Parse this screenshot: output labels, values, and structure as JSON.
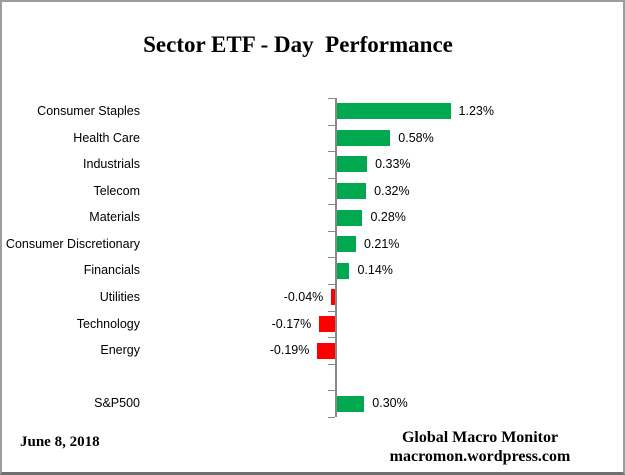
{
  "title": "Sector ETF - Day  Performance",
  "date_note": "June 8, 2018",
  "footer": {
    "line1": "Global Macro Monitor",
    "line2": "macromon.wordpress.com"
  },
  "colors": {
    "positive_bar": "#00A94F",
    "negative_bar": "#FF0000",
    "axis": "#898989",
    "text": "#000000"
  },
  "chart_data": {
    "type": "bar",
    "orientation": "horizontal",
    "title": "Sector ETF - Day  Performance",
    "categories": [
      "Consumer Staples",
      "Health Care",
      "Industrials",
      "Telecom",
      "Materials",
      "Consumer Discretionary",
      "Financials",
      "Utilities",
      "Technology",
      "Energy",
      "S&P500"
    ],
    "values": [
      1.23,
      0.58,
      0.33,
      0.32,
      0.28,
      0.21,
      0.14,
      -0.04,
      -0.17,
      -0.19,
      0.3
    ],
    "data_labels": [
      "1.23%",
      "0.58%",
      "0.33%",
      "0.32%",
      "0.28%",
      "0.21%",
      "0.14%",
      "-0.04%",
      "-0.17%",
      "-0.19%",
      "0.30%"
    ],
    "unit": "%",
    "gap_before": [
      "S&P500"
    ],
    "legend": "none",
    "grid": "off",
    "value_axis_hidden": true,
    "zero_baseline": true
  }
}
